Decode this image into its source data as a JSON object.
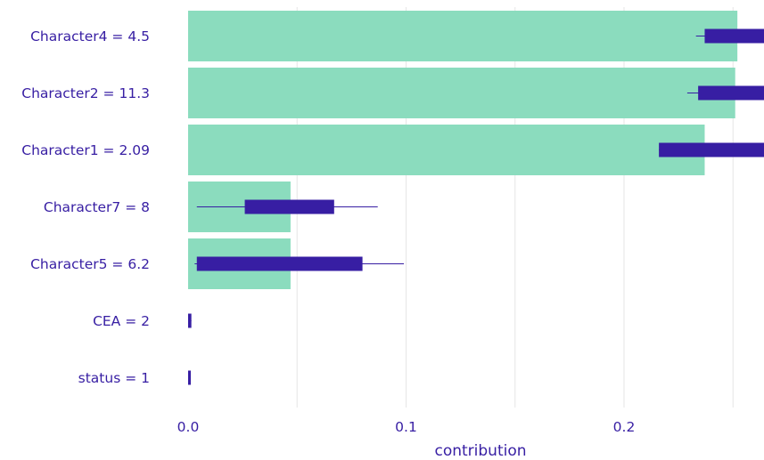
{
  "chart_data": {
    "type": "bar",
    "xlabel": "contribution",
    "title": "",
    "xlim": [
      0,
      0.265
    ],
    "x_ticks": [
      {
        "value": 0.0,
        "label": "0.0"
      },
      {
        "value": 0.1,
        "label": "0.1"
      },
      {
        "value": 0.2,
        "label": "0.2"
      }
    ],
    "grid": "vertical",
    "colors": {
      "bar": "#8bdcbe",
      "box": "#371ea3",
      "grid": "#e6e6e6",
      "text": "#371ea3"
    },
    "categories": [
      "Character4 = 4.5",
      "Character2 = 11.3",
      "Character1 = 2.09",
      "Character7 = 8",
      "Character5 = 6.2",
      "CEA = 2",
      "status = 1"
    ],
    "values": [
      0.252,
      0.251,
      0.237,
      0.047,
      0.047,
      0.0,
      0.0
    ],
    "boxplots": [
      {
        "whisker_min": 0.233,
        "q1": 0.237,
        "q3": 0.3,
        "whisker_max": 0.3
      },
      {
        "whisker_min": 0.229,
        "q1": 0.234,
        "q3": 0.3,
        "whisker_max": 0.3
      },
      {
        "whisker_min": 0.216,
        "q1": 0.216,
        "q3": 0.3,
        "whisker_max": 0.3
      },
      {
        "whisker_min": 0.004,
        "q1": 0.026,
        "q3": 0.067,
        "whisker_max": 0.087
      },
      {
        "whisker_min": 0.003,
        "q1": 0.004,
        "q3": 0.08,
        "whisker_max": 0.099
      },
      {
        "whisker_min": 0.0,
        "q1": 0.0,
        "q3": 0.0015,
        "whisker_max": 0.0015
      },
      {
        "whisker_min": 0.0,
        "q1": 0.0,
        "q3": 0.0008,
        "whisker_max": 0.0008
      }
    ]
  }
}
